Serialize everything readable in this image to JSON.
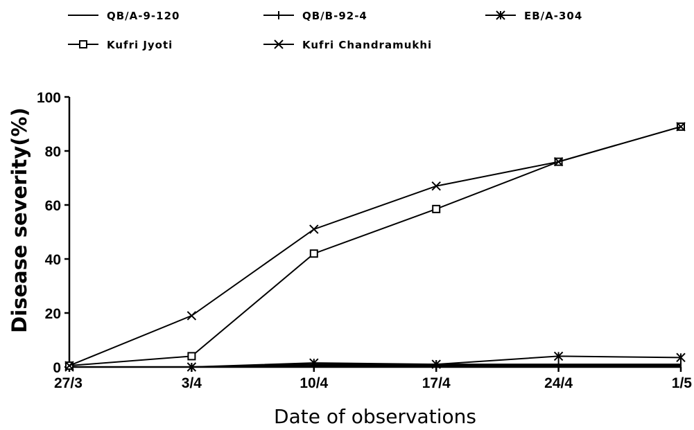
{
  "chart_data": {
    "type": "line",
    "title": "",
    "xlabel": "Date of observations",
    "ylabel": "Disease severity(%)",
    "ylim": [
      0,
      100
    ],
    "y_ticks": [
      "0",
      "20",
      "40",
      "60",
      "80",
      "100"
    ],
    "categories": [
      "27/3",
      "3/4",
      "10/4",
      "17/4",
      "24/4",
      "1/5"
    ],
    "legend_placement": "top",
    "grid": false,
    "series": [
      {
        "name": "QB/A-9-120",
        "marker": "none",
        "values": [
          0,
          0,
          0.5,
          0.5,
          0.5,
          0.5
        ]
      },
      {
        "name": "QB/B-92-4",
        "marker": "plus",
        "values": [
          0,
          0,
          1,
          1,
          1,
          1
        ]
      },
      {
        "name": "EB/A-304",
        "marker": "asterisk",
        "values": [
          0,
          0,
          1.5,
          1,
          4,
          3.5
        ]
      },
      {
        "name": "Kufri Jyoti",
        "marker": "square",
        "values": [
          0.5,
          4,
          42,
          58.5,
          76,
          89
        ]
      },
      {
        "name": "Kufri Chandramukhi",
        "marker": "x",
        "values": [
          0.5,
          19,
          51,
          67,
          76,
          89
        ]
      }
    ]
  }
}
